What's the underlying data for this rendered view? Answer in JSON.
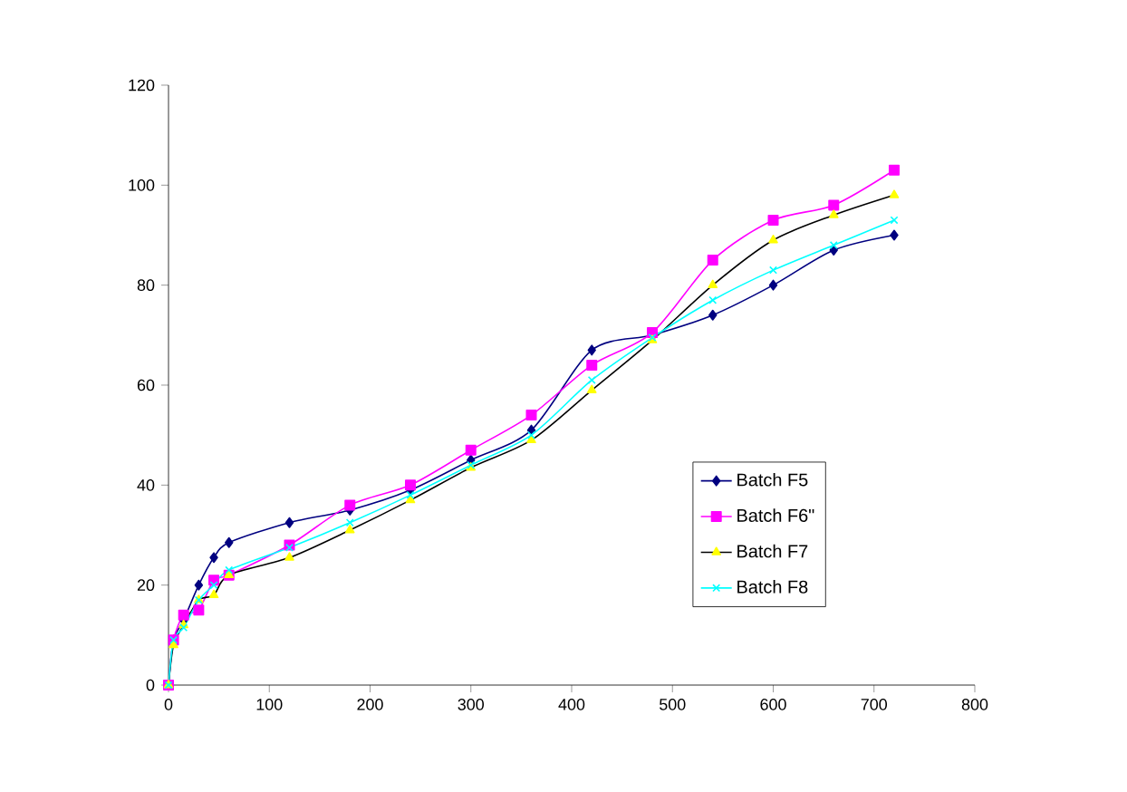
{
  "chart_data": {
    "type": "line",
    "x": [
      0,
      5,
      15,
      30,
      45,
      60,
      120,
      180,
      240,
      300,
      360,
      420,
      480,
      540,
      600,
      660,
      720
    ],
    "series": [
      {
        "name": "Batch F5",
        "color": "#000080",
        "marker": "diamond",
        "values": [
          0,
          9,
          13,
          20,
          25.5,
          28.5,
          32.5,
          35,
          39,
          45,
          51,
          67,
          70,
          74,
          80,
          87,
          90
        ]
      },
      {
        "name": "Batch F6\"",
        "color": "#ff00ff",
        "marker": "square",
        "values": [
          0,
          9,
          14,
          15,
          21,
          22,
          28,
          36,
          40,
          47,
          54,
          64,
          70.5,
          85,
          93,
          96,
          103
        ]
      },
      {
        "name": "Batch F7",
        "color": "#000000",
        "colors": [
          "#ffff00",
          "#ffff00",
          "#ffff00",
          "#ffff00",
          "#ffff00",
          "#ffff00",
          "#ffff00",
          "#ffff00",
          "#ffff00",
          "#ffff00",
          "#ffff00",
          "#ffff00",
          "#ffff00",
          "#ffff00",
          "#ffff00",
          "#ffff00",
          "#ffff00"
        ],
        "marker": "triangle",
        "values": [
          0,
          8,
          12,
          17,
          18,
          22,
          25.5,
          31,
          37,
          43.5,
          49,
          59,
          69,
          80,
          89,
          94,
          98
        ]
      },
      {
        "name": "Batch F8",
        "color": "#00ffff",
        "marker": "cross",
        "values": [
          0,
          9,
          11.5,
          17,
          20,
          23,
          27.5,
          32.5,
          38,
          44,
          50,
          61,
          69.5,
          77,
          83,
          88,
          93
        ]
      }
    ],
    "xlim": [
      0,
      800
    ],
    "xticks": [
      0,
      100,
      200,
      300,
      400,
      500,
      600,
      700,
      800
    ],
    "ylim": [
      0,
      120
    ],
    "yticks": [
      0,
      20,
      40,
      60,
      80,
      100,
      120
    ],
    "grid": false,
    "legend": "right"
  }
}
